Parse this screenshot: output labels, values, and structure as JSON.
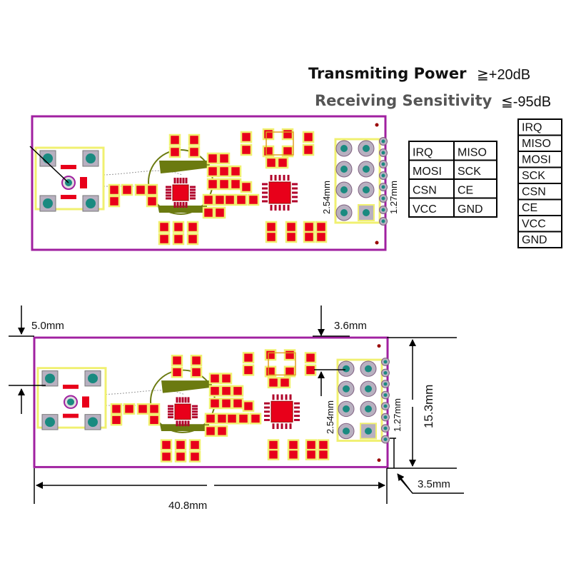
{
  "specs": {
    "transmit_label": "Transmiting Power",
    "transmit_value": "≧+20dB",
    "receive_label": "Receiving Sensitivity",
    "receive_value": "≦-95dB"
  },
  "pin_table_grid": [
    [
      "IRQ",
      "MISO"
    ],
    [
      "MOSI",
      "SCK"
    ],
    [
      "CSN",
      "CE"
    ],
    [
      "VCC",
      "GND"
    ]
  ],
  "pin_table_list": [
    "IRQ",
    "MISO",
    "MOSI",
    "SCK",
    "CSN",
    "CE",
    "VCC",
    "GND"
  ],
  "board_labels": {
    "pitch_large": "2.54mm",
    "pitch_small": "1.27mm"
  },
  "dimensions": {
    "antenna_offset": "5.0mm",
    "header_offset": "3.6mm",
    "height": "15.3mm",
    "width": "40.8mm",
    "pin_offset": "3.5mm"
  },
  "colors": {
    "outline": "#a020a0",
    "pad": "#e8001a",
    "silkscreen": "#f0f070",
    "via": "#1a8a80",
    "ring": "#b8b0c0",
    "antenna_circle": "#6b7a10"
  }
}
